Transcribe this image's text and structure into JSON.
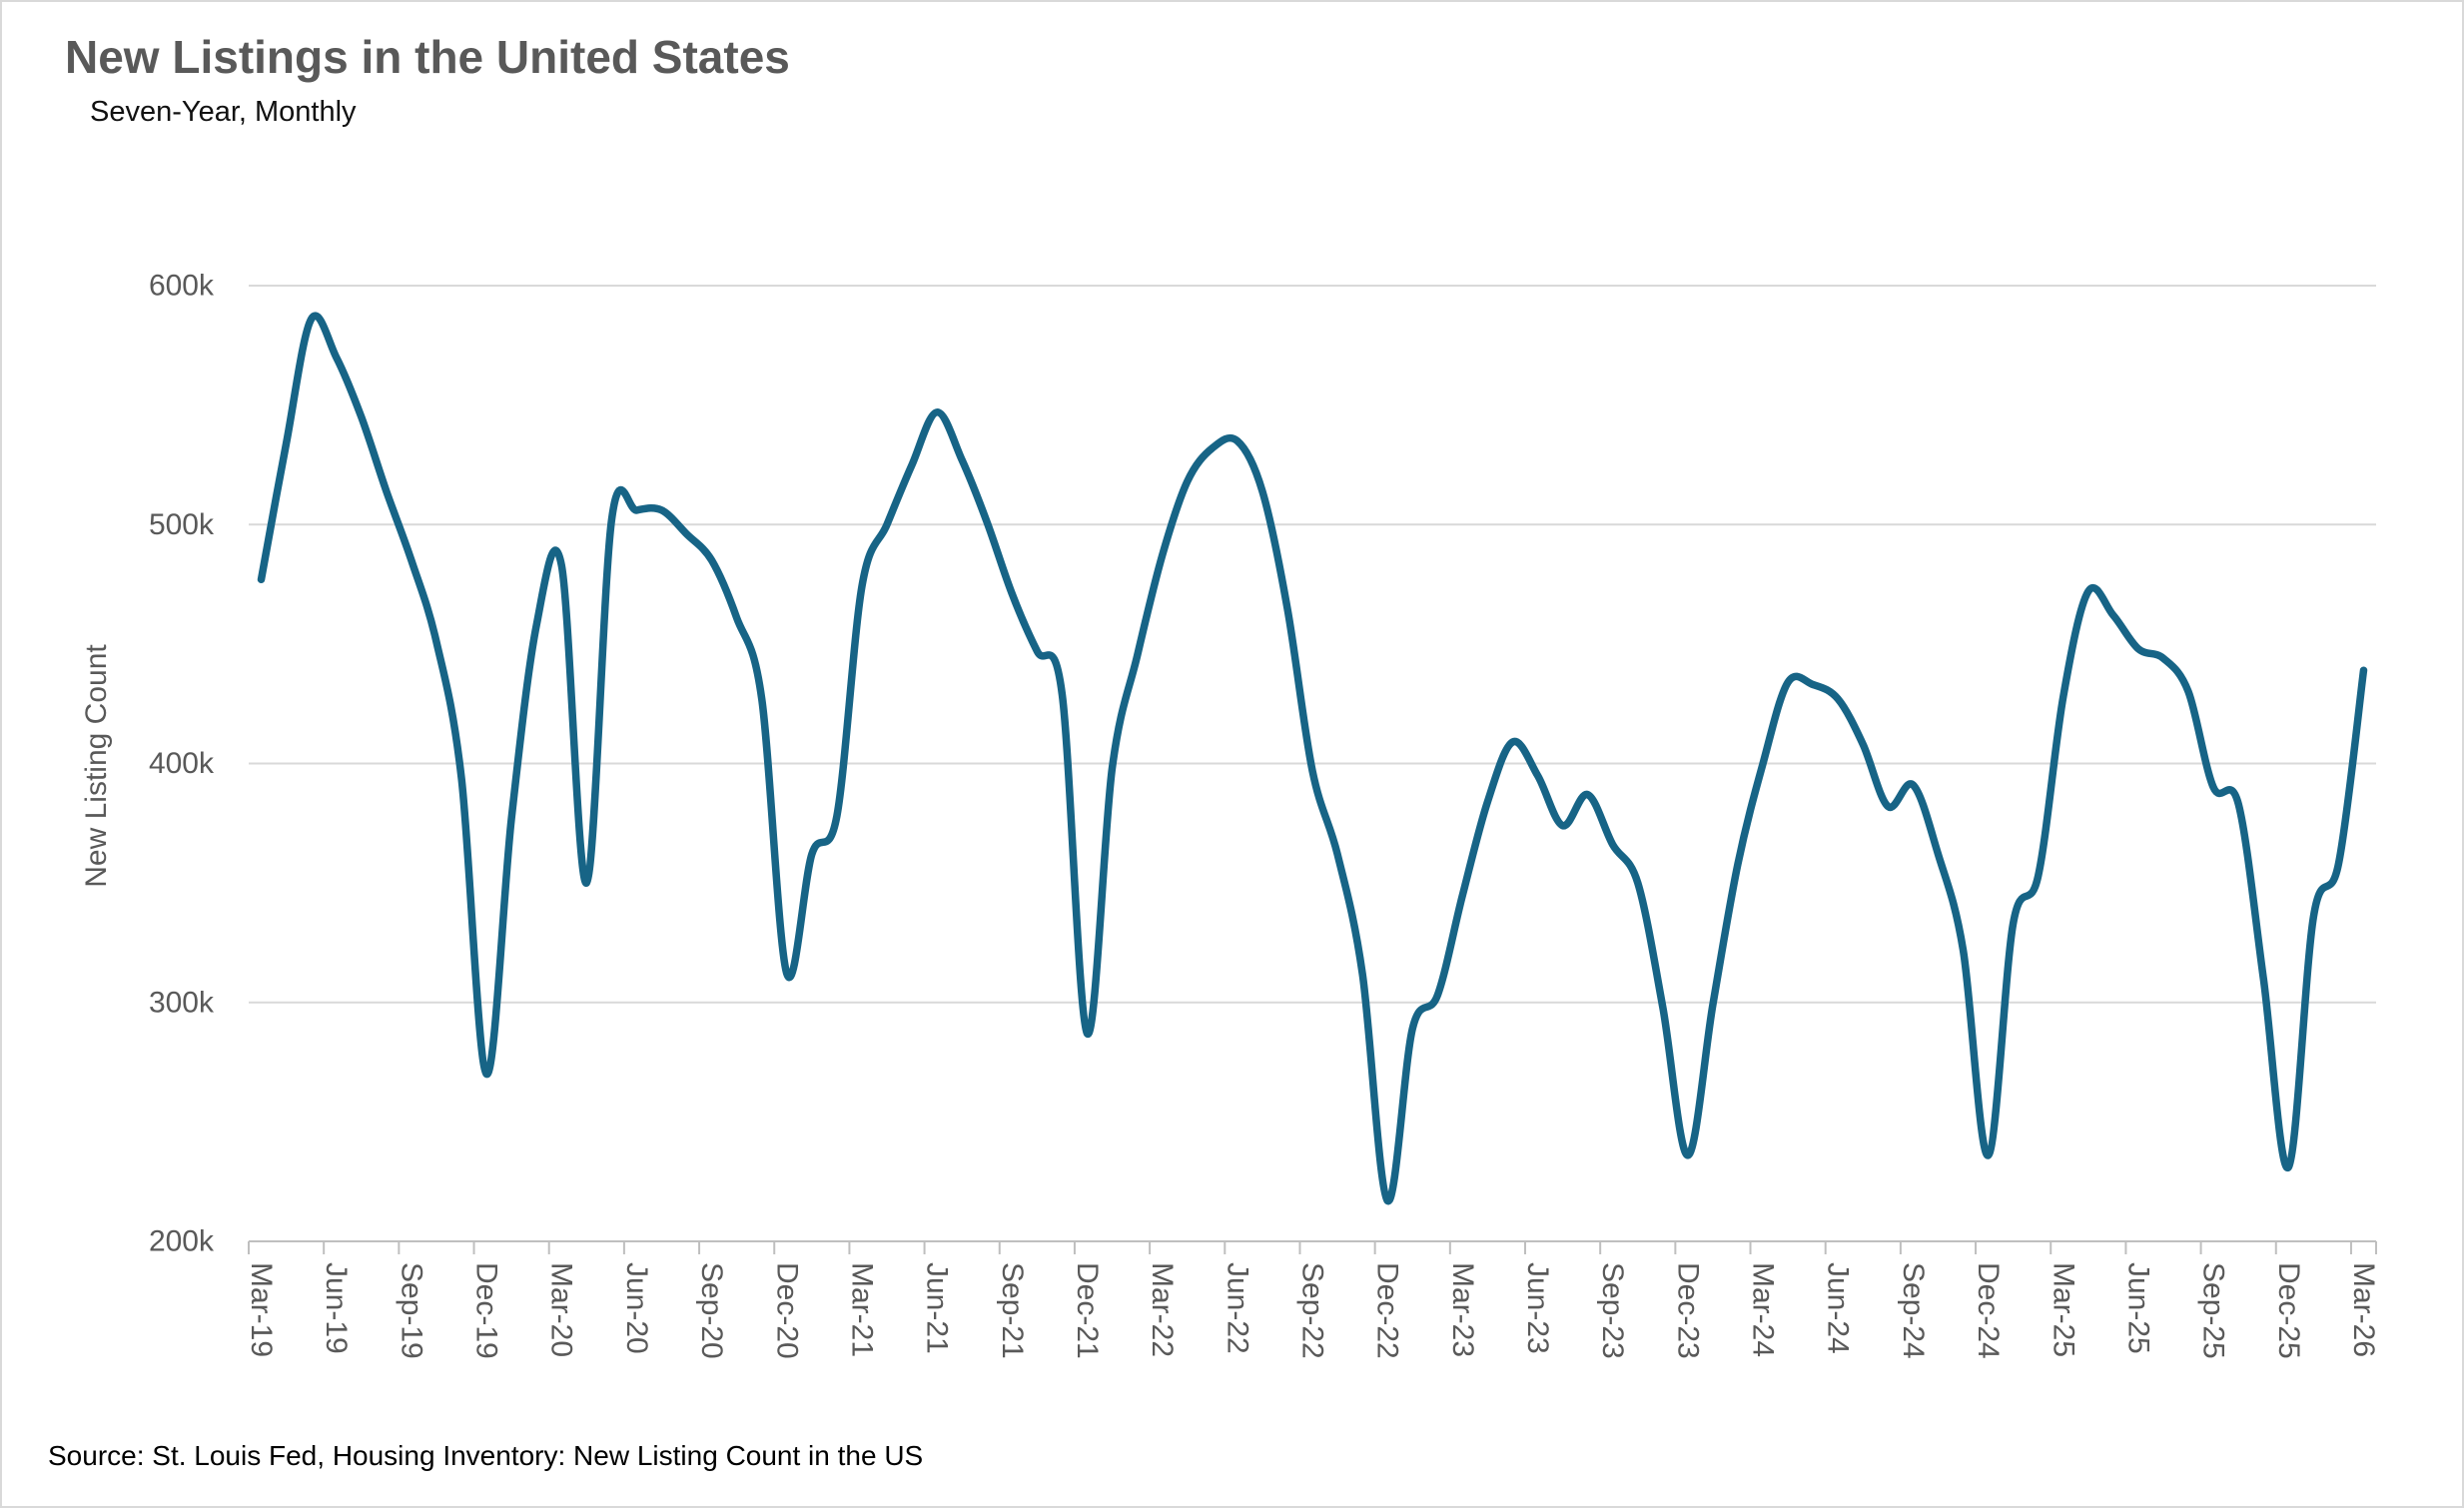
{
  "title": "New Listings in the United States",
  "subtitle": "Seven-Year, Monthly",
  "source": "Source: St. Louis Fed, Housing Inventory: New Listing Count in the US",
  "colors": {
    "line": "#176486",
    "grid": "#d9d9d9",
    "axis": "#bfbfbf",
    "title_text": "#595959",
    "axis_text": "#595959",
    "body_text": "#000000"
  },
  "chart_data": {
    "type": "line",
    "title": "New Listings in the United States",
    "subtitle": "Seven-Year, Monthly",
    "xlabel": "",
    "ylabel": "New Listing Count",
    "unit": "thousands of listings",
    "ylim": [
      200,
      600
    ],
    "y_ticks": [
      600,
      500,
      400,
      300,
      200
    ],
    "y_tick_labels": [
      "600k",
      "500k",
      "400k",
      "300k",
      "200k"
    ],
    "x_tick_labels": [
      "Mar-19",
      "Jun-19",
      "Sep-19",
      "Dec-19",
      "Mar-20",
      "Jun-20",
      "Sep-20",
      "Dec-20",
      "Mar-21",
      "Jun-21",
      "Sep-21",
      "Dec-21",
      "Mar-22",
      "Jun-22",
      "Sep-22",
      "Dec-22",
      "Mar-23",
      "Jun-23",
      "Sep-23",
      "Dec-23",
      "Mar-24",
      "Jun-24",
      "Sep-24",
      "Dec-24",
      "Mar-25",
      "Jun-25",
      "Sep-25",
      "Dec-25",
      "Mar-26"
    ],
    "grid": "horizontal-only",
    "legend": "none",
    "smoothed": true,
    "months": [
      "Mar-19",
      "Apr-19",
      "May-19",
      "Jun-19",
      "Jul-19",
      "Aug-19",
      "Sep-19",
      "Oct-19",
      "Nov-19",
      "Dec-19",
      "Jan-20",
      "Feb-20",
      "Mar-20",
      "Apr-20",
      "May-20",
      "Jun-20",
      "Jul-20",
      "Aug-20",
      "Sep-20",
      "Oct-20",
      "Nov-20",
      "Dec-20",
      "Jan-21",
      "Feb-21",
      "Mar-21",
      "Apr-21",
      "May-21",
      "Jun-21",
      "Jul-21",
      "Aug-21",
      "Sep-21",
      "Oct-21",
      "Nov-21",
      "Dec-21",
      "Jan-22",
      "Feb-22",
      "Mar-22",
      "Apr-22",
      "May-22",
      "Jun-22",
      "Jul-22",
      "Aug-22",
      "Sep-22",
      "Oct-22",
      "Nov-22",
      "Dec-22",
      "Jan-23",
      "Feb-23",
      "Mar-23",
      "Apr-23",
      "May-23",
      "Jun-23",
      "Jul-23",
      "Aug-23",
      "Sep-23",
      "Oct-23",
      "Nov-23",
      "Dec-23",
      "Jan-24",
      "Feb-24",
      "Mar-24",
      "Apr-24",
      "May-24",
      "Jun-24",
      "Jul-24",
      "Aug-24",
      "Sep-24",
      "Oct-24",
      "Nov-24",
      "Dec-24",
      "Jan-25",
      "Feb-25",
      "Mar-25",
      "Apr-25",
      "May-25",
      "Jun-25",
      "Jul-25",
      "Aug-25",
      "Sep-25",
      "Oct-25",
      "Nov-25",
      "Dec-25",
      "Jan-26",
      "Feb-26",
      "Mar-26"
    ],
    "values_thousands": [
      477,
      534,
      586,
      570,
      545,
      514,
      485,
      451,
      394,
      270,
      377,
      458,
      483,
      350,
      502,
      506,
      506,
      496,
      485,
      461,
      427,
      312,
      362,
      378,
      474,
      500,
      525,
      547,
      527,
      501,
      471,
      447,
      429,
      287,
      398,
      445,
      487,
      518,
      532,
      535,
      514,
      465,
      397,
      362,
      312,
      217,
      289,
      303,
      345,
      384,
      409,
      395,
      374,
      387,
      366,
      350,
      298,
      236,
      299,
      358,
      400,
      434,
      433,
      427,
      408,
      382,
      391,
      362,
      322,
      236,
      333,
      353,
      428,
      472,
      462,
      448,
      444,
      430,
      390,
      383,
      310,
      231,
      336,
      358,
      439
    ]
  }
}
